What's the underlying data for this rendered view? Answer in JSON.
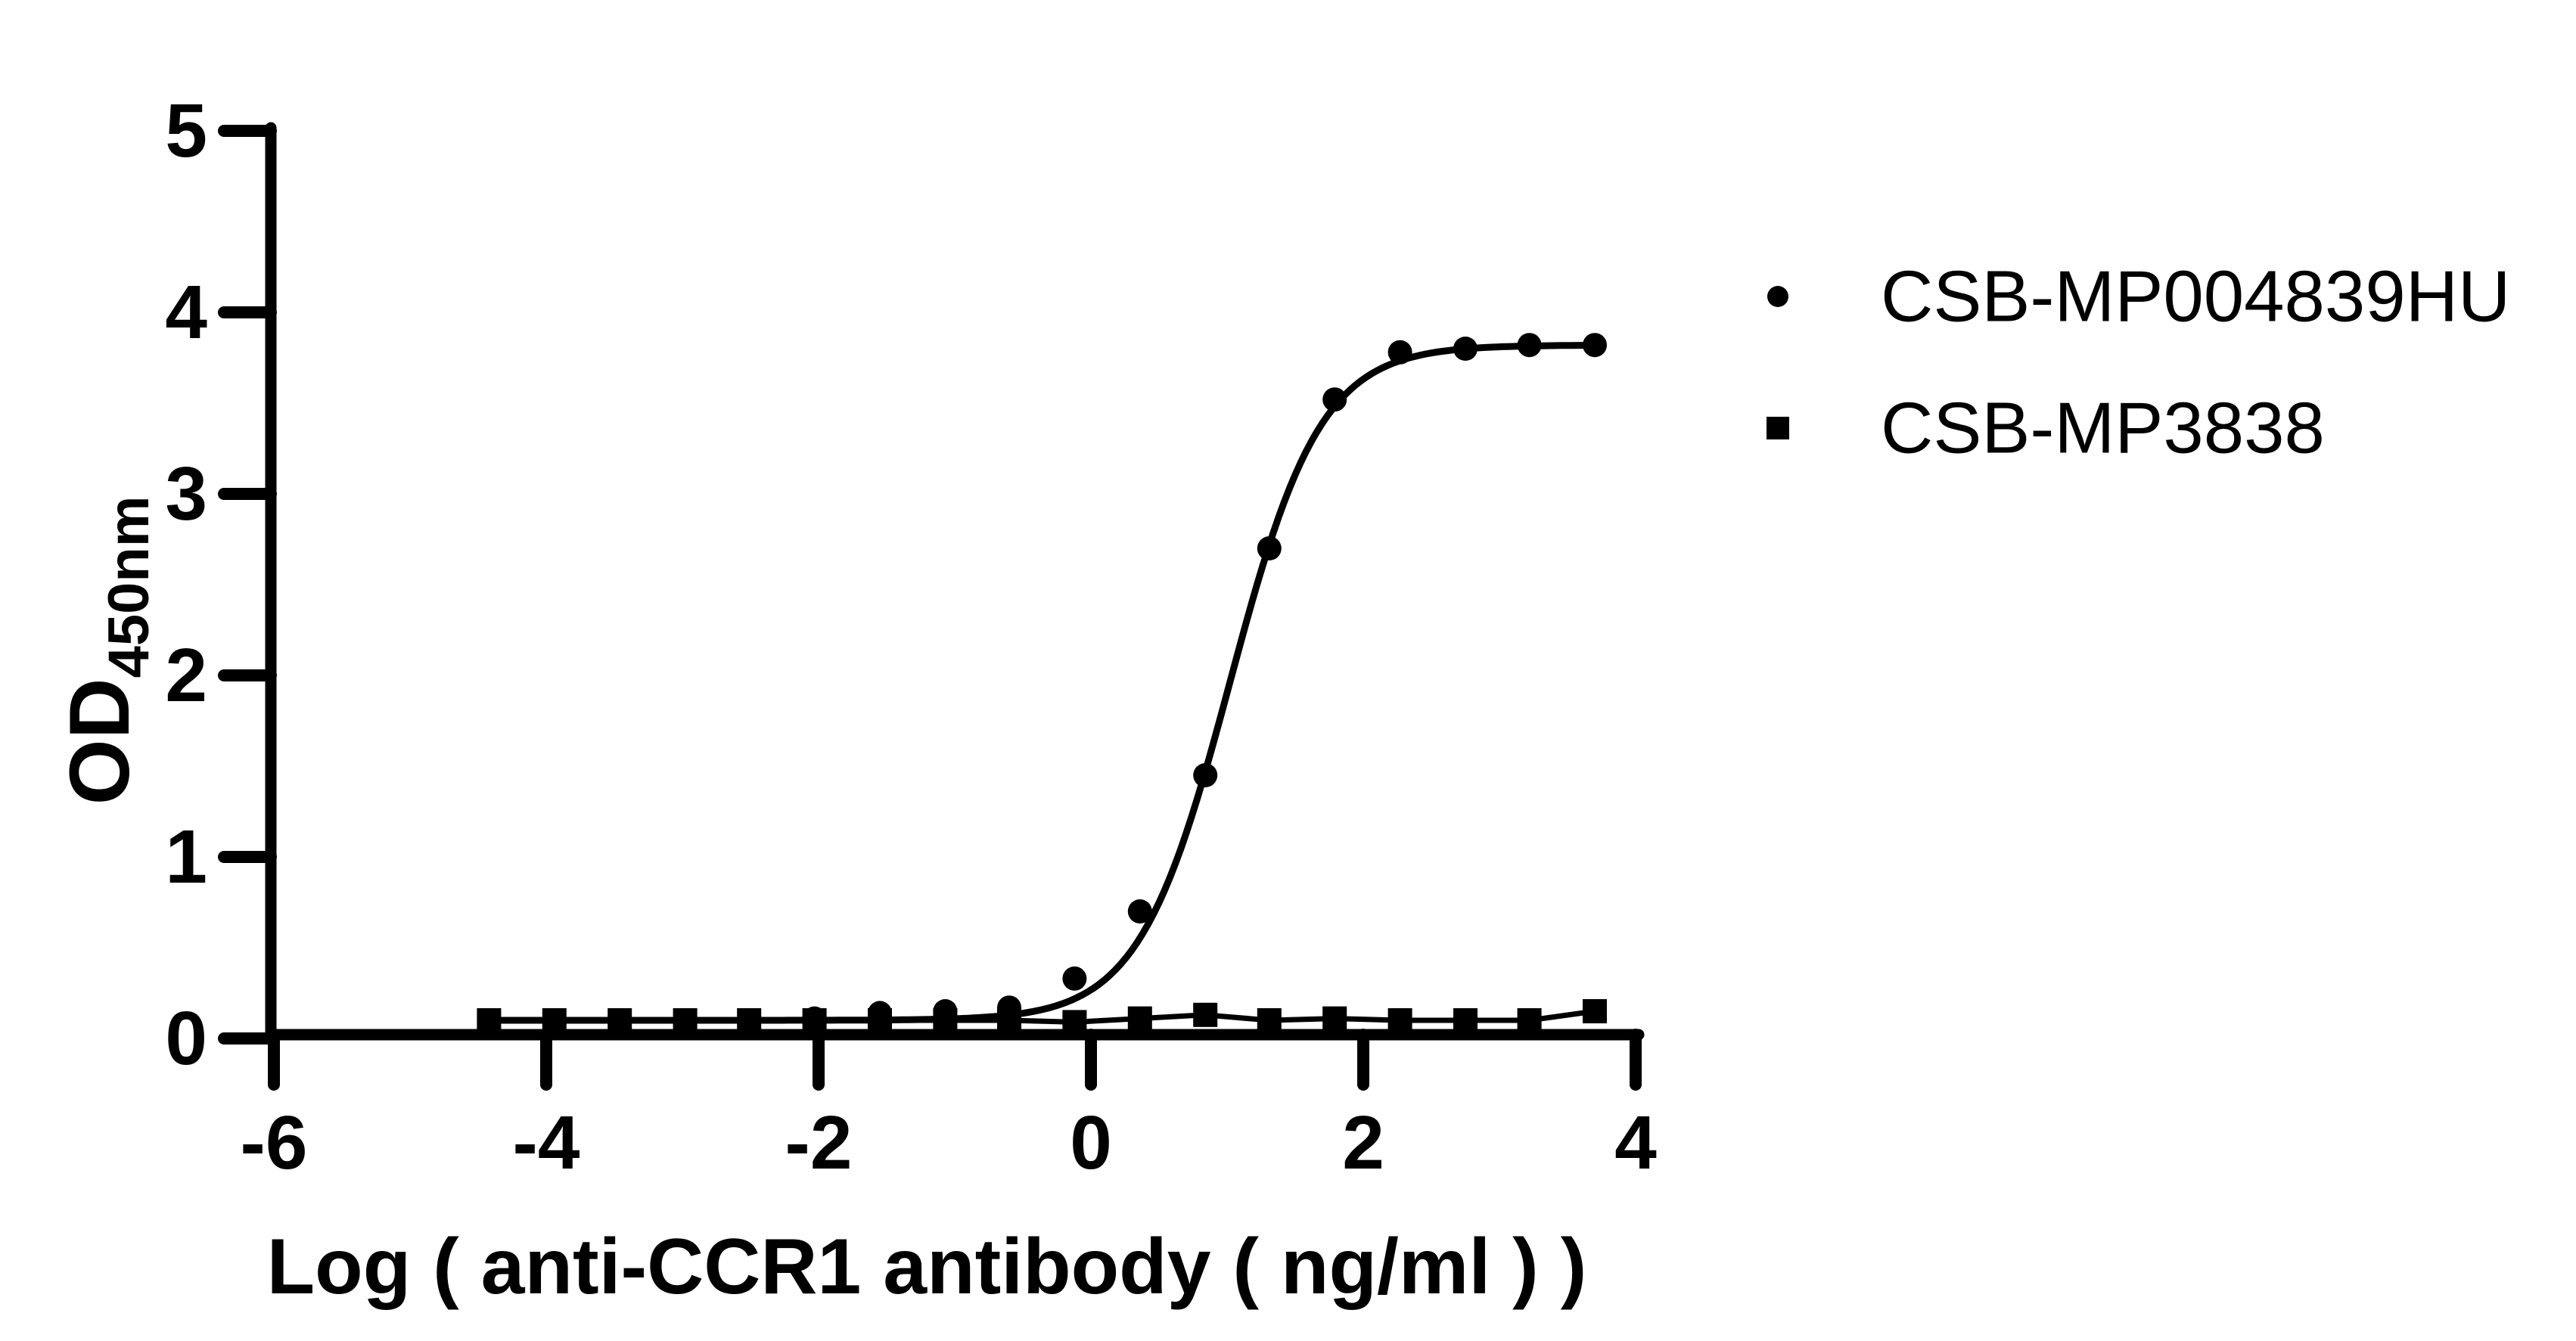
{
  "chart_data": {
    "type": "scatter",
    "title": "",
    "xlabel": "Log ( anti-CCR1 antibody ( ng/ml )   )",
    "ylabel": "OD",
    "ylabel_subscript": "450nm",
    "xlim": [
      -6,
      4
    ],
    "ylim": [
      0,
      5
    ],
    "xticks": [
      "-6",
      "-4",
      "-2",
      "0",
      "2",
      "4"
    ],
    "xtick_values": [
      -6,
      -4,
      -2,
      0,
      2,
      4
    ],
    "yticks": [
      "0",
      "1",
      "2",
      "3",
      "4",
      "5"
    ],
    "ytick_values": [
      0,
      1,
      2,
      3,
      4,
      5
    ],
    "grid": false,
    "legend_position": "right-outside",
    "axis_color": "#000000",
    "marker_color": "#000000",
    "background_color": "#ffffff",
    "series": [
      {
        "name": "CSB-MP004839HU",
        "marker": "circle",
        "x": [
          -4.42,
          -3.94,
          -3.46,
          -2.98,
          -2.51,
          -2.03,
          -1.55,
          -1.07,
          -0.6,
          -0.12,
          0.36,
          0.84,
          1.31,
          1.79,
          2.27,
          2.75,
          3.22,
          3.7
        ],
        "y": [
          0.1,
          0.1,
          0.1,
          0.1,
          0.1,
          0.11,
          0.14,
          0.15,
          0.17,
          0.33,
          0.7,
          1.45,
          2.7,
          3.52,
          3.78,
          3.8,
          3.82,
          3.82
        ],
        "fit": {
          "type": "4PL",
          "bottom": 0.1,
          "top": 3.82,
          "logEC50": 1.02,
          "hill": 1.3
        }
      },
      {
        "name": "CSB-MP3838",
        "marker": "square",
        "x": [
          -4.42,
          -3.94,
          -3.46,
          -2.98,
          -2.51,
          -2.03,
          -1.55,
          -1.07,
          -0.6,
          -0.12,
          0.36,
          0.84,
          1.31,
          1.79,
          2.27,
          2.75,
          3.22,
          3.7
        ],
        "y": [
          0.1,
          0.1,
          0.1,
          0.1,
          0.1,
          0.1,
          0.1,
          0.1,
          0.1,
          0.09,
          0.11,
          0.13,
          0.1,
          0.11,
          0.1,
          0.1,
          0.1,
          0.15
        ],
        "fit": {
          "type": "polyline"
        }
      }
    ]
  }
}
